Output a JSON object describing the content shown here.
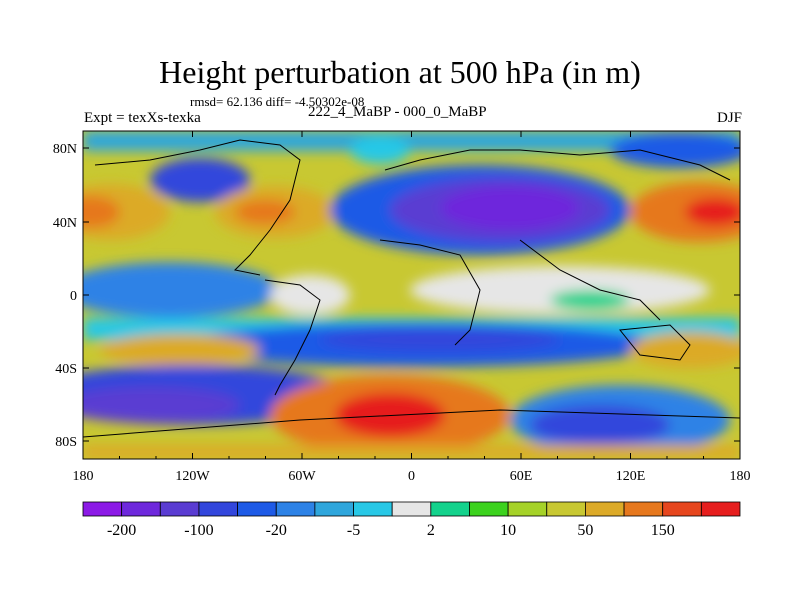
{
  "title": "Height perturbation at 500 hPa (in m)",
  "stats": "rmsd= 62.136 diff= -4.50302e-08",
  "left_label": "Expt = texXs-texka",
  "center_label": "222_4_MaBP - 000_0_MaBP",
  "right_label": "DJF",
  "axes": {
    "x_ticks": [
      "180",
      "120W",
      "60W",
      "0",
      "60E",
      "120E",
      "180"
    ],
    "y_ticks": [
      "80N",
      "40N",
      "0",
      "40S",
      "80S"
    ]
  },
  "colorbar": {
    "colors": [
      "#8c1ae6",
      "#6e28dc",
      "#5a3cd2",
      "#3246dc",
      "#1e5ae6",
      "#2d82e6",
      "#2fa6dc",
      "#28c8e6",
      "#e6e6e6",
      "#14d28c",
      "#3cd21e",
      "#a5d228",
      "#c8c832",
      "#dcaa28",
      "#e6781e",
      "#e6461e",
      "#e61e1e"
    ],
    "labels": [
      "-200",
      "-100",
      "-20",
      "-5",
      "2",
      "10",
      "50",
      "150"
    ]
  },
  "map_legend": {
    "colors_hint": "blue negative, red positive"
  }
}
